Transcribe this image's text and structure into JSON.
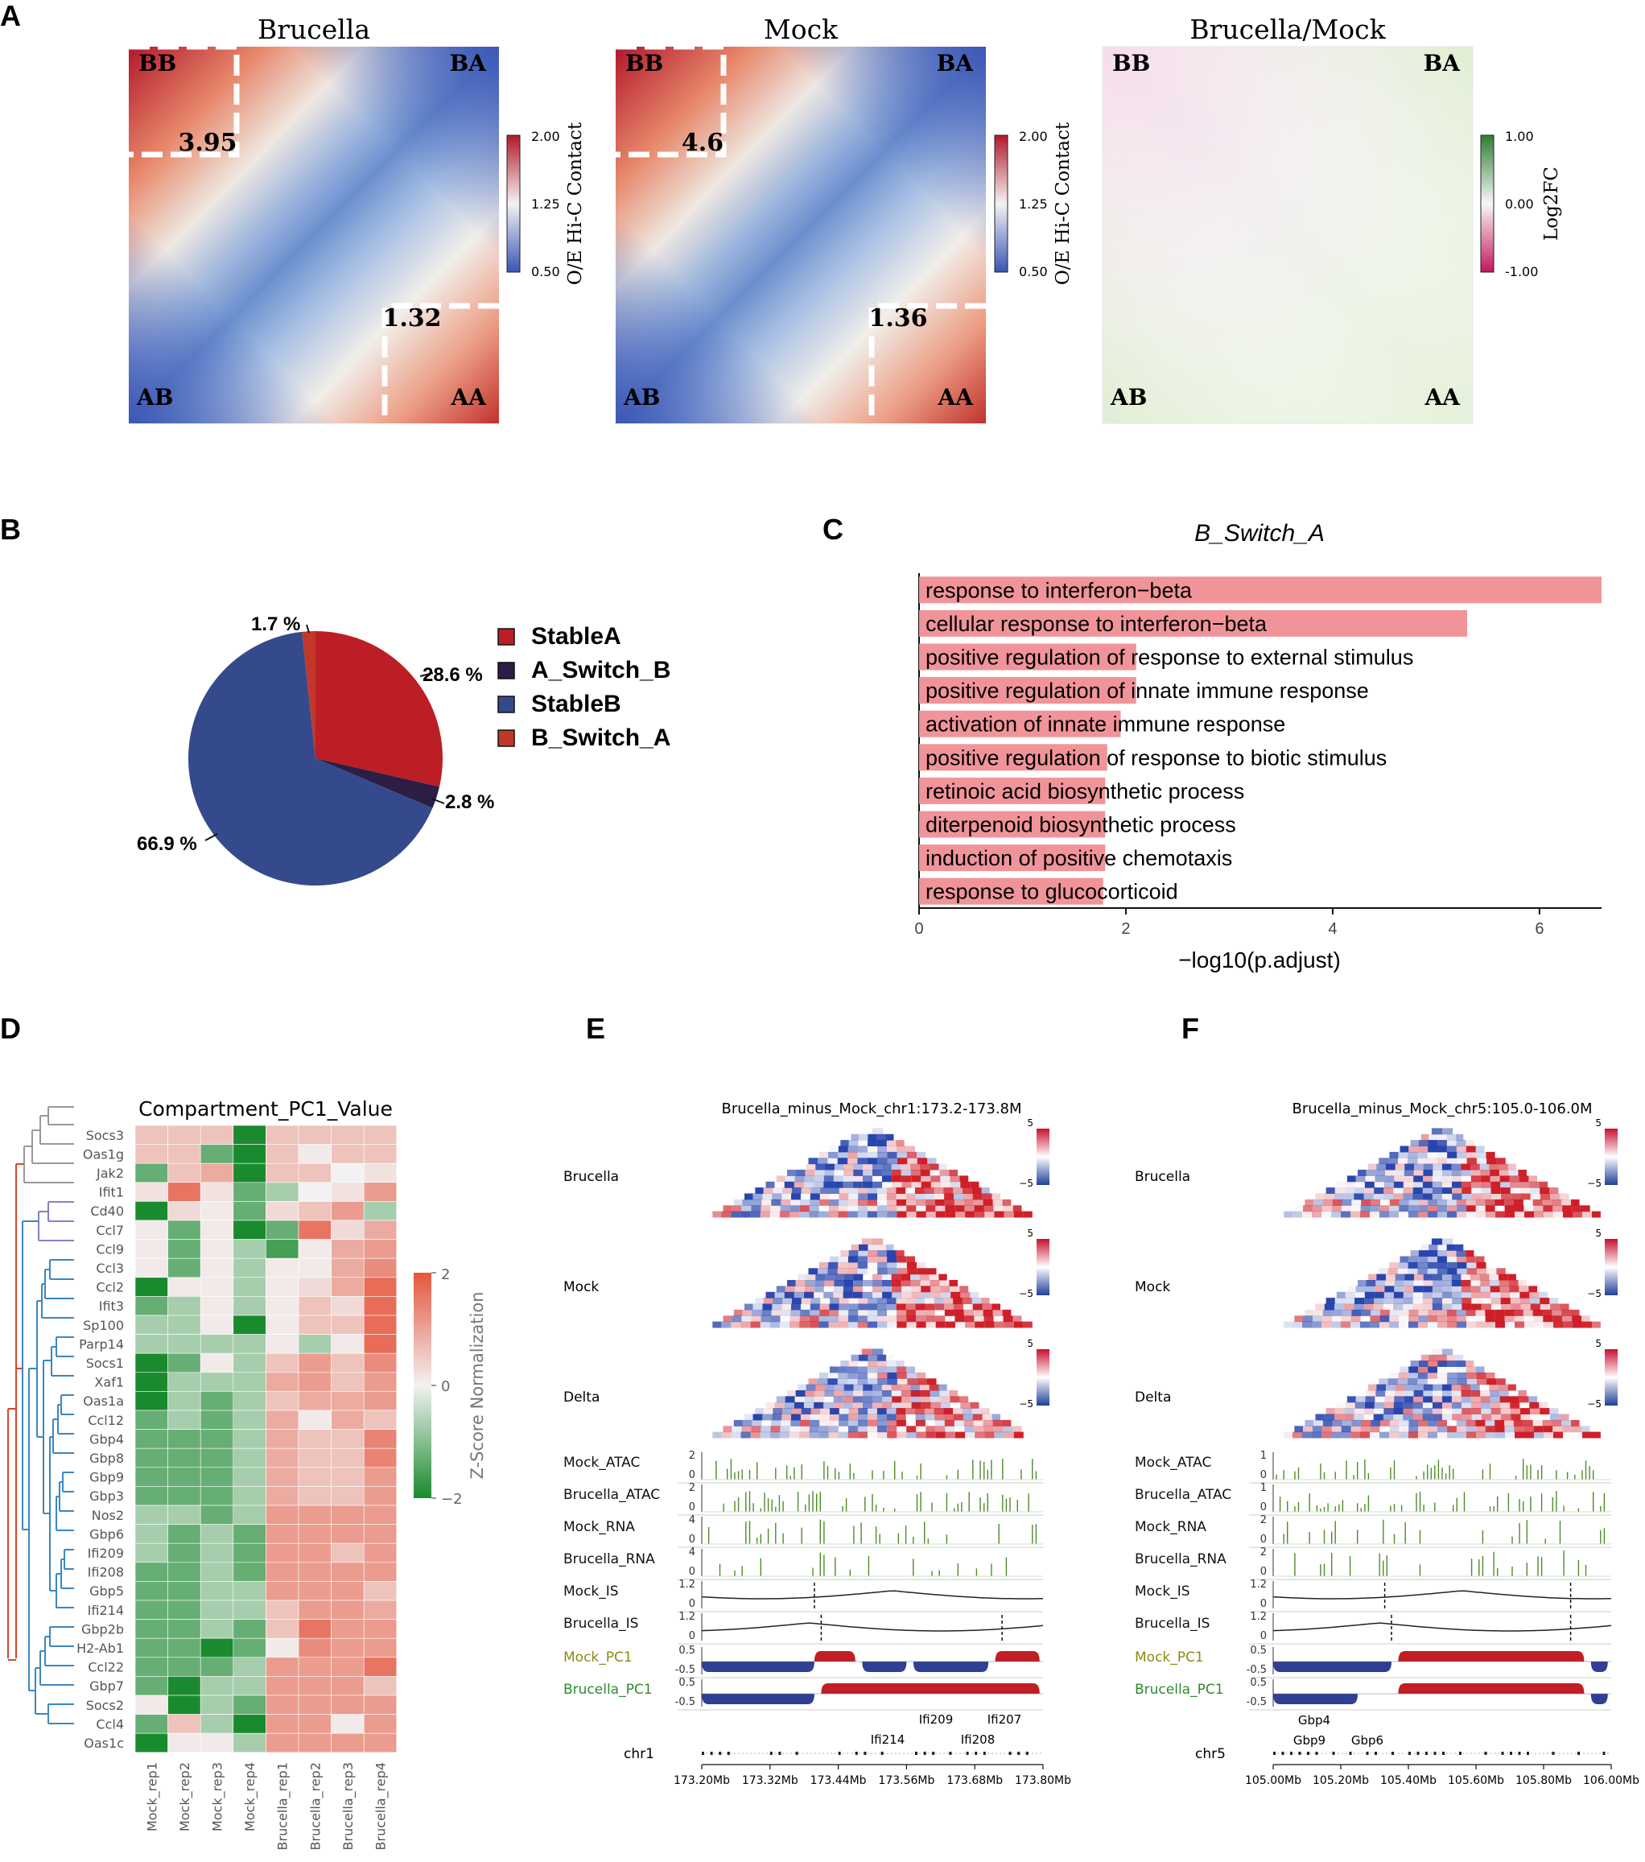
{
  "panel_letters": {
    "a": "A",
    "b": "B",
    "c": "C",
    "d": "D",
    "e": "E",
    "f": "F"
  },
  "panel_a": {
    "maps": [
      {
        "title": "Brucella",
        "corners": {
          "tl": "BB",
          "tr": "BA",
          "bl": "AB",
          "br": "AA"
        },
        "bb_value": "3.95",
        "aa_value": "1.32"
      },
      {
        "title": "Mock",
        "corners": {
          "tl": "BB",
          "tr": "BA",
          "bl": "AB",
          "br": "AA"
        },
        "bb_value": "4.6",
        "aa_value": "1.36"
      },
      {
        "title": "Brucella/Mock",
        "corners": {
          "tl": "BB",
          "tr": "BA",
          "bl": "AB",
          "br": "AA"
        }
      }
    ],
    "colorbar_oe": {
      "label": "O/E Hi-C Contact",
      "ticks": [
        "2.00",
        "1.25",
        "0.50"
      ],
      "low": "#3a55b4",
      "mid": "#f3f3f3",
      "high": "#b2182b"
    },
    "colorbar_fc": {
      "label": "Log2FC",
      "ticks": [
        "1.00",
        "0.00",
        "-1.00"
      ],
      "low": "#c2185b",
      "mid": "#f7f7f7",
      "high": "#2e7d32"
    }
  },
  "panel_b": {
    "chart_data": {
      "type": "pie",
      "slices": [
        {
          "name": "StableA",
          "value": 28.6,
          "label": "28.6 %",
          "color": "#bb1e24"
        },
        {
          "name": "A_Switch_B",
          "value": 2.8,
          "label": "2.8 %",
          "color": "#2b1d44"
        },
        {
          "name": "StableB",
          "value": 66.9,
          "label": "66.9 %",
          "color": "#354a8c"
        },
        {
          "name": "B_Switch_A",
          "value": 1.7,
          "label": "1.7 %",
          "color": "#c1372a"
        }
      ]
    }
  },
  "panel_c": {
    "chart_data": {
      "type": "bar",
      "orientation": "horizontal",
      "title": "B_Switch_A",
      "xlabel": "−log10(p.adjust)",
      "xlim": [
        0,
        6.6
      ],
      "xticks": [
        "0",
        "2",
        "4",
        "6"
      ],
      "bar_color": "#f09499",
      "categories": [
        "response to interferon−beta",
        "cellular response to interferon−beta",
        "positive regulation of response to external stimulus",
        "positive regulation of innate immune response",
        "activation of innate immune response",
        "positive regulation of response to biotic stimulus",
        "retinoic acid biosynthetic process",
        "diterpenoid biosynthetic process",
        "induction of positive chemotaxis",
        "response to glucocorticoid"
      ],
      "values": [
        6.6,
        5.3,
        2.1,
        2.1,
        1.95,
        1.82,
        1.8,
        1.8,
        1.8,
        1.78
      ]
    }
  },
  "panel_d": {
    "chart_data": {
      "type": "heatmap",
      "title": "Compartment_PC1_Value",
      "rows": [
        "Socs3",
        "Oas1g",
        "Jak2",
        "Ifit1",
        "Cd40",
        "Ccl7",
        "Ccl9",
        "Ccl3",
        "Ccl2",
        "Ifit3",
        "Sp100",
        "Parp14",
        "Socs1",
        "Xaf1",
        "Oas1a",
        "Ccl12",
        "Gbp4",
        "Gbp8",
        "Gbp9",
        "Gbp3",
        "Nos2",
        "Gbp6",
        "Ifi209",
        "Ifi208",
        "Gbp5",
        "Ifi214",
        "Gbp2b",
        "H2-Ab1",
        "Ccl22",
        "Gbp7",
        "Socs2",
        "Ccl4",
        "Oas1c"
      ],
      "columns": [
        "Mock_rep1",
        "Mock_rep2",
        "Mock_rep3",
        "Mock_rep4",
        "Brucella_rep1",
        "Brucella_rep2",
        "Brucella_rep3",
        "Brucella_rep4"
      ],
      "values": [
        [
          0.6,
          0.6,
          0.6,
          -2,
          0.6,
          0.6,
          0.6,
          0.6
        ],
        [
          0.6,
          0.6,
          -1.3,
          -2,
          0.6,
          0.1,
          0.6,
          0.6
        ],
        [
          -1.3,
          0.6,
          0.9,
          -2,
          0.6,
          0.6,
          0,
          0.2
        ],
        [
          0.2,
          1.6,
          0.2,
          -1.3,
          -0.7,
          0,
          0.2,
          1.1
        ],
        [
          -2,
          0.3,
          0.1,
          -1.3,
          0.3,
          0.6,
          1.1,
          -0.7
        ],
        [
          0.1,
          -1.3,
          0.1,
          -2,
          -1.3,
          1.6,
          0.3,
          0.9
        ],
        [
          0.1,
          -1.3,
          0.1,
          -0.7,
          -1.6,
          0.1,
          0.9,
          1.1
        ],
        [
          0.1,
          -1.3,
          0.1,
          -0.7,
          0.1,
          0.1,
          0.9,
          1.3
        ],
        [
          -2,
          0.1,
          0.1,
          -0.7,
          0.1,
          0.3,
          0.9,
          1.7
        ],
        [
          -1.3,
          -0.7,
          0.1,
          -0.7,
          0.1,
          0.6,
          0.3,
          1.7
        ],
        [
          -0.7,
          -0.7,
          0.1,
          -2,
          0.1,
          0.6,
          0.6,
          1.7
        ],
        [
          -0.7,
          -0.7,
          -0.7,
          -0.7,
          0.1,
          -0.7,
          0.1,
          1.7
        ],
        [
          -2,
          -1.3,
          0.1,
          -0.7,
          0.6,
          1.1,
          0.6,
          1.3
        ],
        [
          -2,
          -0.7,
          -0.7,
          -0.7,
          0.9,
          1.1,
          0.6,
          1.1
        ],
        [
          -2,
          -0.7,
          -1.3,
          -0.7,
          0.6,
          0.9,
          0.9,
          1.1
        ],
        [
          -1.3,
          -0.7,
          -1.3,
          -0.7,
          0.9,
          0.1,
          0.9,
          0.6
        ],
        [
          -1.3,
          -1.3,
          -1.3,
          -0.7,
          0.9,
          0.6,
          0.6,
          1.4
        ],
        [
          -1.3,
          -1.3,
          -1.3,
          -0.7,
          0.9,
          0.6,
          0.6,
          1.4
        ],
        [
          -1.3,
          -1.3,
          -1.3,
          -0.7,
          0.9,
          0.6,
          0.6,
          1.1
        ],
        [
          -1.3,
          -1.3,
          -1.3,
          -0.7,
          0.9,
          0.6,
          0.6,
          1.1
        ],
        [
          -0.7,
          -0.7,
          -1.3,
          -0.7,
          1.1,
          1.1,
          1.1,
          1.1
        ],
        [
          -0.7,
          -1.3,
          -0.7,
          -1.3,
          1.1,
          1.1,
          1.1,
          1.1
        ],
        [
          -0.7,
          -1.3,
          -0.7,
          -1.3,
          1.1,
          1.1,
          0.6,
          1.1
        ],
        [
          -1.3,
          -1.3,
          -0.7,
          -1.3,
          1.1,
          1.1,
          1.1,
          1.1
        ],
        [
          -1.3,
          -1.3,
          -0.7,
          -0.7,
          1.1,
          1.1,
          1.1,
          0.6
        ],
        [
          -1.3,
          -1.3,
          -0.7,
          -0.7,
          0.6,
          1.1,
          1.1,
          0.9
        ],
        [
          -1.3,
          -1.3,
          -0.7,
          -1.3,
          0.6,
          1.6,
          1.1,
          1.1
        ],
        [
          -1.3,
          -1.3,
          -2,
          -1.3,
          0.1,
          1.3,
          1.1,
          1.1
        ],
        [
          -1.3,
          -1.3,
          -1.3,
          -0.7,
          1.1,
          1.1,
          1.1,
          1.6
        ],
        [
          -1.3,
          -2,
          -0.7,
          -0.7,
          1.1,
          1.1,
          1.1,
          0.6
        ],
        [
          0.1,
          -2,
          -0.7,
          -1.3,
          1.1,
          1.1,
          1.1,
          1.1
        ],
        [
          -1.3,
          0.6,
          -0.7,
          -2,
          1.1,
          1.1,
          0.1,
          1.1
        ],
        [
          -2,
          0.1,
          0.1,
          -0.7,
          1.1,
          1.1,
          1.1,
          1.1
        ]
      ],
      "colorbar_label": "Z-Score Normalization",
      "colorbar_ticks": [
        "2",
        "0",
        "−2"
      ],
      "low_color": "#1a8a2e",
      "mid_color": "#f2f2f2",
      "high_color": "#e5553e"
    }
  },
  "panel_e": {
    "title": "Brucella_minus_Mock_chr1:173.2-173.8M",
    "map_labels": [
      "Brucella",
      "Mock",
      "Delta"
    ],
    "map_scale": {
      "max": "5",
      "min": "−5"
    },
    "tracks": [
      {
        "label": "Mock_ATAC",
        "top": "2",
        "bottom": "0"
      },
      {
        "label": "Brucella_ATAC",
        "top": "2",
        "bottom": "0"
      },
      {
        "label": "Mock_RNA",
        "top": "4",
        "bottom": "0"
      },
      {
        "label": "Brucella_RNA",
        "top": "4",
        "bottom": "0"
      },
      {
        "label": "Mock_IS",
        "top": "1.2",
        "bottom": "0"
      },
      {
        "label": "Brucella_IS",
        "top": "1.2",
        "bottom": "0"
      },
      {
        "label": "Mock_PC1",
        "top": "0.5",
        "bottom": "-0.5"
      },
      {
        "label": "Brucella_PC1",
        "top": "0.5",
        "bottom": "-0.5"
      }
    ],
    "genes": [
      "Ifi209",
      "Ifi207",
      "Ifi214",
      "Ifi208"
    ],
    "chrom": "chr1",
    "axis_ticks": [
      "173.20Mb",
      "173.32Mb",
      "173.44Mb",
      "173.56Mb",
      "173.68Mb",
      "173.80Mb"
    ]
  },
  "panel_f": {
    "title": "Brucella_minus_Mock_chr5:105.0-106.0M",
    "map_labels": [
      "Brucella",
      "Mock",
      "Delta"
    ],
    "map_scale": {
      "max": "5",
      "min": "−5"
    },
    "tracks": [
      {
        "label": "Mock_ATAC",
        "top": "1",
        "bottom": "0"
      },
      {
        "label": "Brucella_ATAC",
        "top": "1",
        "bottom": "0"
      },
      {
        "label": "Mock_RNA",
        "top": "2",
        "bottom": "0"
      },
      {
        "label": "Brucella_RNA",
        "top": "2",
        "bottom": "0"
      },
      {
        "label": "Mock_IS",
        "top": "1.2",
        "bottom": "0"
      },
      {
        "label": "Brucella_IS",
        "top": "1.2",
        "bottom": "0"
      },
      {
        "label": "Mock_PC1",
        "top": "0.5",
        "bottom": "-0.5"
      },
      {
        "label": "Brucella_PC1",
        "top": "0.5",
        "bottom": "-0.5"
      }
    ],
    "genes": [
      "Gbp4",
      "Gbp9",
      "Gbp6"
    ],
    "chrom": "chr5",
    "axis_ticks": [
      "105.00Mb",
      "105.20Mb",
      "105.40Mb",
      "105.60Mb",
      "105.80Mb",
      "106.00Mb"
    ]
  },
  "colors": {
    "mock_pc1_label": "#8b8a12",
    "brucella_pc1_label": "#2e8b2e",
    "track_green": "#4e8a2a",
    "pc1_red": "#c01f25",
    "pc1_blue": "#2f3f95"
  }
}
